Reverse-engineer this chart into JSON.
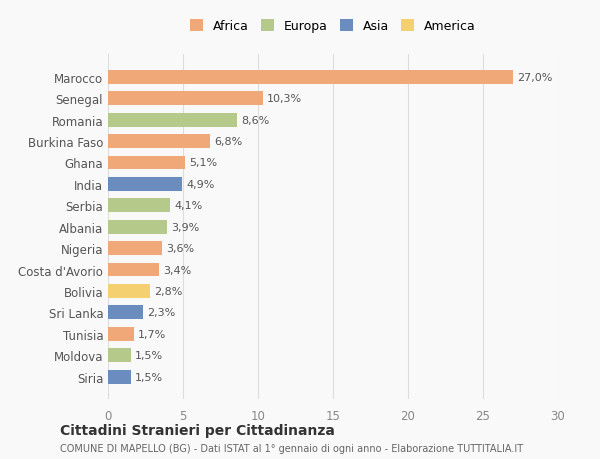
{
  "countries": [
    "Marocco",
    "Senegal",
    "Romania",
    "Burkina Faso",
    "Ghana",
    "India",
    "Serbia",
    "Albania",
    "Nigeria",
    "Costa d'Avorio",
    "Bolivia",
    "Sri Lanka",
    "Tunisia",
    "Moldova",
    "Siria"
  ],
  "values": [
    27.0,
    10.3,
    8.6,
    6.8,
    5.1,
    4.9,
    4.1,
    3.9,
    3.6,
    3.4,
    2.8,
    2.3,
    1.7,
    1.5,
    1.5
  ],
  "labels": [
    "27,0%",
    "10,3%",
    "8,6%",
    "6,8%",
    "5,1%",
    "4,9%",
    "4,1%",
    "3,9%",
    "3,6%",
    "3,4%",
    "2,8%",
    "2,3%",
    "1,7%",
    "1,5%",
    "1,5%"
  ],
  "continents": [
    "Africa",
    "Africa",
    "Europa",
    "Africa",
    "Africa",
    "Asia",
    "Europa",
    "Europa",
    "Africa",
    "Africa",
    "America",
    "Asia",
    "Africa",
    "Europa",
    "Asia"
  ],
  "continent_colors": {
    "Africa": "#F0A878",
    "Europa": "#B5C98A",
    "Asia": "#6B8CBF",
    "America": "#F5D070"
  },
  "legend_order": [
    "Africa",
    "Europa",
    "Asia",
    "America"
  ],
  "title": "Cittadini Stranieri per Cittadinanza",
  "subtitle": "COMUNE DI MAPELLO (BG) - Dati ISTAT al 1° gennaio di ogni anno - Elaborazione TUTTITALIA.IT",
  "xlim": [
    0,
    30
  ],
  "xticks": [
    0,
    5,
    10,
    15,
    20,
    25,
    30
  ],
  "background_color": "#f9f9f9",
  "grid_color": "#dddddd"
}
